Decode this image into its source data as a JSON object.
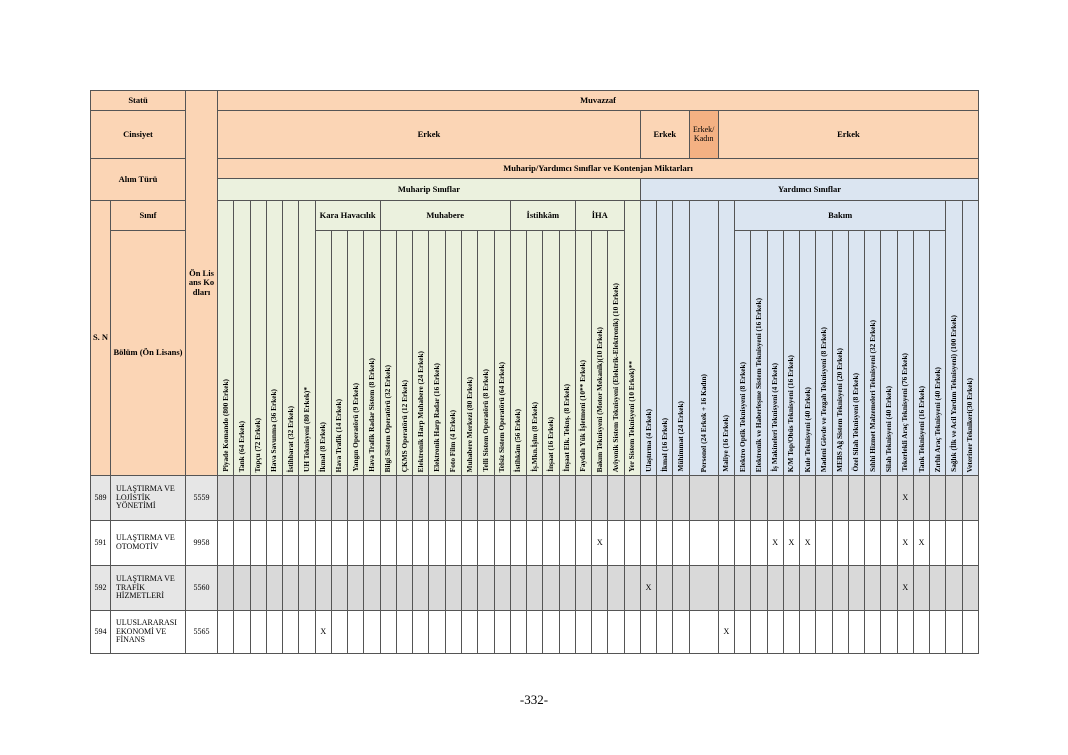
{
  "table": {
    "statu_label": "Statü",
    "statu": "Muvazzaf",
    "cinsiyet_label": "Cinsiyet",
    "cinsiyet": [
      "Erkek",
      "Erkek",
      "Erkek/ Kadın",
      "Erkek"
    ],
    "alim_turu_label": "Alım Türü",
    "kontenjan_title": "Muharip/Yardımcı Sınıflar ve Kontenjan Miktarları",
    "sn_label": "S. N",
    "sinif_label": "Sınıf",
    "bolum_label": "Bölüm (Ön Lisans)",
    "kod_label": "Ön Lisans Kodları",
    "sections": [
      {
        "title": "Muharip Sınıflar",
        "items": [
          "Piyade Komando (800 Erkek)",
          "Tank (64 Erkek)",
          "Topçu (72 Erkek)",
          "Hava Savunma (36 Erkek)",
          "İstihbarat (32 Erkek)",
          "UH Teknisyeni (80 Erkek)*",
          {
            "group": "Kara Havacılık",
            "columns": [
              "İkmal (8 Erkek)",
              "Hava Trafik (14 Erkek)",
              "Yangın Operatörü (9 Erkek)",
              "Hava Trafik Radar Sistem (8 Erkek)"
            ]
          },
          {
            "group": "Muhabere",
            "columns": [
              "Bilgi Sistem Operatörü (32 Erkek)",
              "ÇKMS Operatörü (12 Erkek)",
              "Elektronik Harp Muhabere (24 Erkek)",
              "Elektronik Harp Radar (16 Erkek)",
              "Foto Film (4 Erkek)",
              "Muhabere Merkezi (80 Erkek)",
              "Telli Sistem Operatörü (8 Erkek)",
              "Telsiz Sistem Operatörü (64 Erkek)"
            ]
          },
          {
            "group": "İstihkâm",
            "columns": [
              "İstihkâm (56 Erkek)",
              "İş.Mkn.İşlm (8 Erkek)",
              "İnşaat (16 Erkek)",
              "İnşaat Elk. Teknş. (8 Erkek)"
            ]
          },
          {
            "group": "İHA",
            "columns": [
              "Faydalı Yük İşletmeni (10** Erkek)",
              "Bakım Teknisyeni (Motor Mekanik)(10 Erkek)",
              "Aviyonik Sistem Teknisyeni (Elektrik-Elektronik) (10 Erkek)"
            ]
          },
          "Yer Sistem Teknisyeni (10 Erkek)**"
        ]
      },
      {
        "title": "Yardımcı Sınıflar",
        "items": [
          "Ulaştırma (4 Erkek)",
          "İkmal (16 Erkek)",
          "Mühimmat (24 Erkek)",
          "Personel (24 Erkek + 16 Kadın)",
          "Maliye (16 Erkek)",
          {
            "group": "Bakım",
            "columns": [
              "Elektro Optik Teknisyeni (8 Erkek)",
              "Elektronik ve Haberleşme Sistem Teknisyeni (16 Erkek)",
              "İş Makineleri Teknisyeni (4 Erkek)",
              "K/M Top/Obüs Teknisyeni (16 Erkek)",
              "Kule Teknisyeni (40 Erkek)",
              "Madeni Gövde ve Tezgah Teknisyeni (8 Erkek)",
              "MEBS Ağ Sistem Teknisyeni (20 Erkek)",
              "Özel Silah Teknisyeni (8 Erkek)",
              "Sıhhi Hizmet Malzemeleri Teknisyeni (32 Erkek)",
              "Silah Teknisyeni (40 Erkek)",
              "Tekerlekli Araç Teknisyeni (76 Erkek)",
              "Tank Teknisyeni (16 Erkek)",
              "Zırhlı Araç Teknisyeni (40 Erkek)"
            ]
          },
          "Sağlık (İlk ve Acil Yardım Teknisyeni) (100 Erkek)",
          "Veteriner Teknikeri(30 Erkek)"
        ]
      }
    ],
    "rows": [
      {
        "sn": "589",
        "bolum": "ULAŞTIRMA VE LOJİSTİK YÖNETİMİ",
        "kod": "5559",
        "marks": {
          "41": "X"
        }
      },
      {
        "sn": "591",
        "bolum": "ULAŞTIRMA VE OTOMOTİV",
        "kod": "9958",
        "marks": {
          "23": "X",
          "33": "X",
          "34": "X",
          "35": "X",
          "41": "X",
          "42": "X"
        }
      },
      {
        "sn": "592",
        "bolum": "ULAŞTIRMA VE TRAFİK HİZMETLERİ",
        "kod": "5560",
        "marks": {
          "26": "X",
          "41": "X"
        }
      },
      {
        "sn": "594",
        "bolum": "ULUSLARARASI EKONOMİ VE FİNANS",
        "kod": "5565",
        "marks": {
          "6": "X",
          "30": "X"
        }
      }
    ]
  },
  "page_number": "-332-"
}
